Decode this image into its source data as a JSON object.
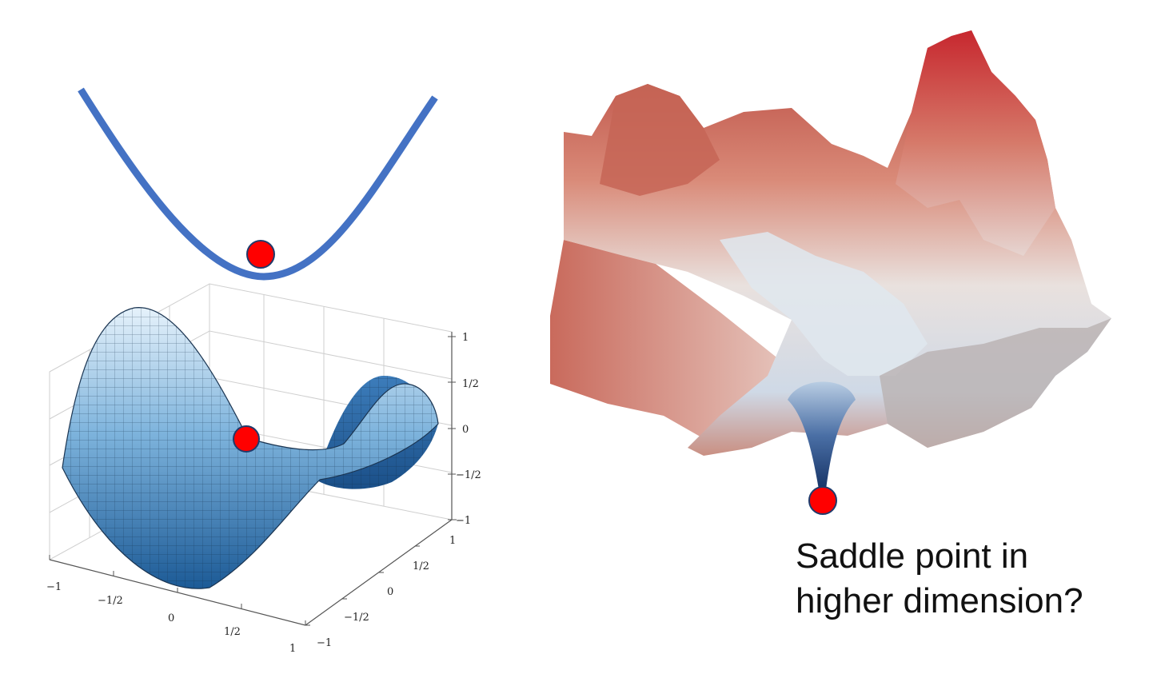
{
  "caption": {
    "line1": "Saddle point in",
    "line2": "higher dimension?"
  },
  "saddle_plot": {
    "z_ticks": [
      "1",
      "1/2",
      "0",
      "−1/2",
      "−1"
    ],
    "x_ticks": [
      "−1",
      "−1/2",
      "0",
      "1/2",
      "1"
    ],
    "y_ticks": [
      "−1",
      "−1/2",
      "0",
      "1/2",
      "1"
    ]
  },
  "colors": {
    "parabola": "#4472C4",
    "marker": "#ff0000",
    "marker_outline": "#1f3a6b",
    "saddle_light": "#dceefb",
    "saddle_dark": "#1c5a96",
    "landscape_warm": "#c9574a",
    "landscape_mid": "#e8d9d4",
    "landscape_cool": "#1d3f7a"
  },
  "icons": [
    "red-marker-icon"
  ]
}
